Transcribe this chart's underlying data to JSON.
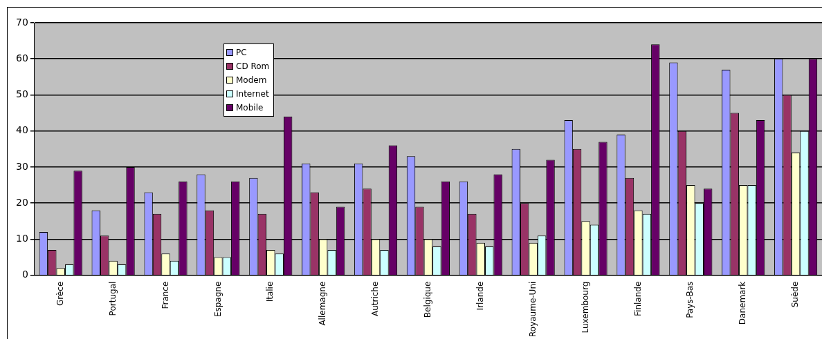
{
  "chart_data": {
    "type": "bar",
    "categories": [
      "Grèce",
      "Portugal",
      "France",
      "Espagne",
      "Italie",
      "Allemagne",
      "Autriche",
      "Belgique",
      "Irlande",
      "Royaume-Uni",
      "Luxembourg",
      "Finlande",
      "Pays-Bas",
      "Danemark",
      "Suède"
    ],
    "series": [
      {
        "name": "PC",
        "color": "#9999ff",
        "values": [
          12,
          18,
          23,
          28,
          27,
          31,
          31,
          33,
          26,
          35,
          43,
          39,
          59,
          57,
          60
        ]
      },
      {
        "name": "CD Rom",
        "color": "#993366",
        "values": [
          7,
          11,
          17,
          18,
          17,
          23,
          24,
          19,
          17,
          20,
          35,
          27,
          40,
          45,
          50
        ]
      },
      {
        "name": "Modem",
        "color": "#ffffcc",
        "values": [
          2,
          4,
          6,
          5,
          7,
          10,
          10,
          10,
          9,
          9,
          15,
          18,
          25,
          25,
          34
        ]
      },
      {
        "name": "Internet",
        "color": "#ccffff",
        "values": [
          3,
          3,
          4,
          5,
          6,
          7,
          7,
          8,
          8,
          11,
          14,
          17,
          20,
          25,
          40
        ]
      },
      {
        "name": "Mobile",
        "color": "#660066",
        "values": [
          29,
          30,
          26,
          26,
          44,
          19,
          36,
          26,
          28,
          32,
          37,
          64,
          24,
          43,
          60
        ]
      }
    ],
    "ylim": [
      0,
      70
    ],
    "yticks": [
      0,
      10,
      20,
      30,
      40,
      50,
      60,
      70
    ],
    "grid": "y",
    "legend": "top left"
  }
}
